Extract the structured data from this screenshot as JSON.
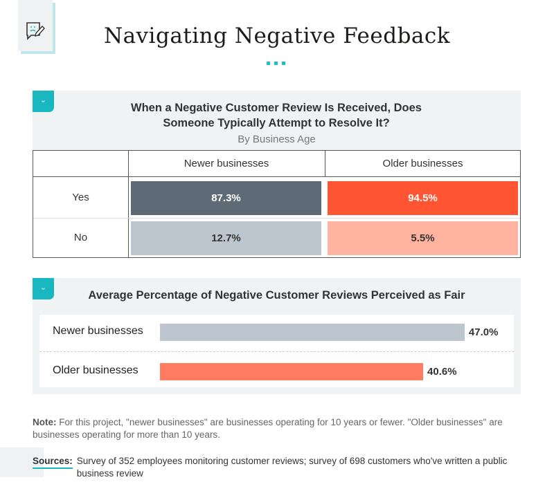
{
  "header": {
    "title": "Navigating Negative Feedback",
    "icon": "sad-chat-pencil-icon"
  },
  "colors": {
    "accent": "#19b7bf",
    "newer_yes": "#5e6b76",
    "older_yes": "#ff5533",
    "newer_no": "#bdc6ce",
    "older_no": "#ffb3a0",
    "newer_fair": "#bdc6ce",
    "older_fair": "#ff7b61"
  },
  "chart_data": [
    {
      "type": "table",
      "title": "When a Negative Customer Review Is Received, Does Someone Typically Attempt to Resolve It?",
      "subtitle": "By Business Age",
      "columns": [
        "Newer businesses",
        "Older businesses"
      ],
      "rows": [
        {
          "label": "Yes",
          "values": [
            "87.3%",
            "94.5%"
          ]
        },
        {
          "label": "No",
          "values": [
            "12.7%",
            "5.5%"
          ]
        }
      ]
    },
    {
      "type": "bar",
      "title": "Average Percentage of Negative Customer Reviews Perceived as Fair",
      "categories": [
        "Newer businesses",
        "Older businesses"
      ],
      "values": [
        47.0,
        40.6
      ],
      "labels": [
        "47.0%",
        "40.6%"
      ]
    }
  ],
  "footer": {
    "note_label": "Note:",
    "note_text": " For this project, \"newer businesses\" are businesses operating for 10 years or fewer. \"Older businesses\" are businesses operating for more than 10 years.",
    "sources_label": "Sources:",
    "sources_text": "Survey of 352 employees monitoring customer reviews; survey of 698 customers who've written a public business review"
  }
}
